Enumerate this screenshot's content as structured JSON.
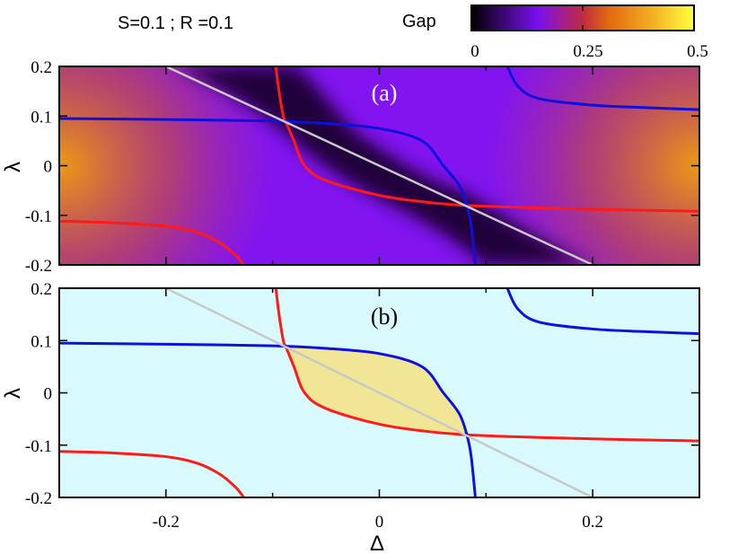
{
  "header": {
    "params": "S=0.1 ; R =0.1",
    "colorbar_title": "Gap",
    "colorbar_ticks": [
      "0",
      "0.25",
      "0.5"
    ]
  },
  "colors": {
    "red_curve": "#ff1a1a",
    "blue_curve": "#1010dd",
    "diagonal": "#c8c8c8",
    "panel_b_background": "#d8fafc",
    "panel_b_fill": "#f0e696",
    "colormap": [
      "#000000",
      "#7a10f0",
      "#c02a40",
      "#e26a10",
      "#f2aa22",
      "#ffff40"
    ]
  },
  "chart_data": [
    {
      "type": "heatmap",
      "panel_label": "(a)",
      "xlabel": "Δ",
      "ylabel": "λ",
      "xlim": [
        -0.3,
        0.3
      ],
      "ylim": [
        -0.2,
        0.2
      ],
      "x_ticks": [
        "-0.2",
        "0",
        "0.2"
      ],
      "y_ticks": [
        "0.2",
        "0.1",
        "0",
        "-0.1",
        "-0.2"
      ],
      "colorbar": {
        "label": "Gap",
        "range": [
          0,
          0.5
        ],
        "ticks": [
          0,
          0.25,
          0.5
        ]
      },
      "series": [
        {
          "color": "red",
          "points": [
            [
              -0.097,
              0.2
            ],
            [
              -0.094,
              0.15
            ],
            [
              -0.09,
              0.1
            ],
            [
              -0.087,
              0.085
            ],
            [
              -0.08,
              0.05
            ],
            [
              -0.07,
              0.0
            ],
            [
              -0.05,
              -0.03
            ],
            [
              0.0,
              -0.06
            ],
            [
              0.05,
              -0.075
            ],
            [
              0.1,
              -0.082
            ],
            [
              0.2,
              -0.088
            ],
            [
              0.3,
              -0.092
            ]
          ]
        },
        {
          "color": "red",
          "points": [
            [
              -0.3,
              -0.112
            ],
            [
              -0.25,
              -0.115
            ],
            [
              -0.2,
              -0.122
            ],
            [
              -0.17,
              -0.135
            ],
            [
              -0.15,
              -0.155
            ],
            [
              -0.135,
              -0.18
            ],
            [
              -0.127,
              -0.2
            ]
          ]
        },
        {
          "color": "blue",
          "points": [
            [
              -0.3,
              0.095
            ],
            [
              -0.2,
              0.093
            ],
            [
              -0.1,
              0.09
            ],
            [
              -0.05,
              0.085
            ],
            [
              0.0,
              0.075
            ],
            [
              0.04,
              0.05
            ],
            [
              0.06,
              0.0
            ],
            [
              0.075,
              -0.04
            ],
            [
              0.082,
              -0.08
            ],
            [
              0.086,
              -0.12
            ],
            [
              0.09,
              -0.2
            ]
          ]
        },
        {
          "color": "blue",
          "points": [
            [
              0.12,
              0.2
            ],
            [
              0.13,
              0.16
            ],
            [
              0.15,
              0.135
            ],
            [
              0.2,
              0.122
            ],
            [
              0.25,
              0.117
            ],
            [
              0.3,
              0.113
            ]
          ]
        },
        {
          "color": "gray",
          "points": [
            [
              -0.2,
              0.2
            ],
            [
              0.2,
              -0.2
            ]
          ]
        }
      ]
    },
    {
      "type": "area",
      "panel_label": "(b)",
      "xlabel": "Δ",
      "ylabel": "λ",
      "xlim": [
        -0.3,
        0.3
      ],
      "ylim": [
        -0.2,
        0.2
      ],
      "x_ticks": [
        "-0.2",
        "0",
        "0.2"
      ],
      "y_ticks": [
        "0.2",
        "0.1",
        "0",
        "-0.1",
        "-0.2"
      ],
      "series": [
        {
          "color": "red",
          "points": [
            [
              -0.097,
              0.2
            ],
            [
              -0.094,
              0.15
            ],
            [
              -0.09,
              0.1
            ],
            [
              -0.087,
              0.085
            ],
            [
              -0.08,
              0.05
            ],
            [
              -0.07,
              0.0
            ],
            [
              -0.05,
              -0.03
            ],
            [
              0.0,
              -0.06
            ],
            [
              0.05,
              -0.075
            ],
            [
              0.1,
              -0.082
            ],
            [
              0.2,
              -0.088
            ],
            [
              0.3,
              -0.092
            ]
          ]
        },
        {
          "color": "red",
          "points": [
            [
              -0.3,
              -0.112
            ],
            [
              -0.25,
              -0.115
            ],
            [
              -0.2,
              -0.122
            ],
            [
              -0.17,
              -0.135
            ],
            [
              -0.15,
              -0.155
            ],
            [
              -0.135,
              -0.18
            ],
            [
              -0.127,
              -0.2
            ]
          ]
        },
        {
          "color": "blue",
          "points": [
            [
              -0.3,
              0.095
            ],
            [
              -0.2,
              0.093
            ],
            [
              -0.1,
              0.09
            ],
            [
              -0.05,
              0.085
            ],
            [
              0.0,
              0.075
            ],
            [
              0.04,
              0.05
            ],
            [
              0.06,
              0.0
            ],
            [
              0.075,
              -0.04
            ],
            [
              0.082,
              -0.08
            ],
            [
              0.086,
              -0.12
            ],
            [
              0.09,
              -0.2
            ]
          ]
        },
        {
          "color": "blue",
          "points": [
            [
              0.12,
              0.2
            ],
            [
              0.13,
              0.16
            ],
            [
              0.15,
              0.135
            ],
            [
              0.2,
              0.122
            ],
            [
              0.25,
              0.117
            ],
            [
              0.3,
              0.113
            ]
          ]
        },
        {
          "color": "gray",
          "points": [
            [
              -0.2,
              0.2
            ],
            [
              0.2,
              -0.2
            ]
          ]
        }
      ],
      "filled_region": {
        "color": "yellow",
        "between": [
          "blue upper curve",
          "red upper curve"
        ],
        "x_range": [
          -0.087,
          0.085
        ]
      }
    }
  ]
}
